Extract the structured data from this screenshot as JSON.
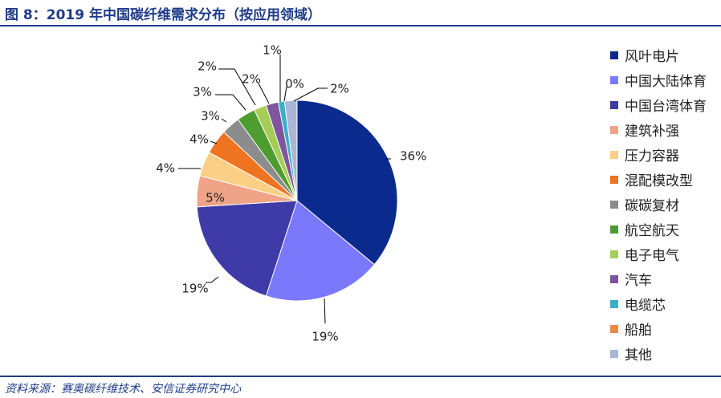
{
  "title": "图 8：2019 年中国碳纤维需求分布（按应用领域）",
  "source": "资料来源：赛奥碳纤维技术、安信证券研究中心",
  "chart_data": {
    "type": "pie",
    "unit": "%",
    "legend_position": "right",
    "slices": [
      {
        "label": "风叶电片",
        "value": 36,
        "value_label": "36%",
        "color": "#0a2a8e"
      },
      {
        "label": "中国大陆体育",
        "value": 19,
        "value_label": "19%",
        "color": "#7b79fb"
      },
      {
        "label": "中国台湾体育",
        "value": 19,
        "value_label": "19%",
        "color": "#3e3ba8"
      },
      {
        "label": "建筑补强",
        "value": 5,
        "value_label": "5%",
        "color": "#f0a487"
      },
      {
        "label": "压力容器",
        "value": 4,
        "value_label": "4%",
        "color": "#fbcf84"
      },
      {
        "label": "混配模改型",
        "value": 4,
        "value_label": "4%",
        "color": "#ee7422"
      },
      {
        "label": "碳碳复材",
        "value": 3,
        "value_label": "3%",
        "color": "#8c8c8c"
      },
      {
        "label": "航空航天",
        "value": 3,
        "value_label": "3%",
        "color": "#4d9c30"
      },
      {
        "label": "电子电气",
        "value": 2,
        "value_label": "2%",
        "color": "#a6cd55"
      },
      {
        "label": "汽车",
        "value": 2,
        "value_label": "2%",
        "color": "#7e559f"
      },
      {
        "label": "电缆芯",
        "value": 1,
        "value_label": "1%",
        "color": "#3aafc8"
      },
      {
        "label": "船舶",
        "value": 0,
        "value_label": "0%",
        "color": "#ef8a45"
      },
      {
        "label": "其他",
        "value": 2,
        "value_label": "2%",
        "color": "#a9b6d6"
      }
    ]
  }
}
